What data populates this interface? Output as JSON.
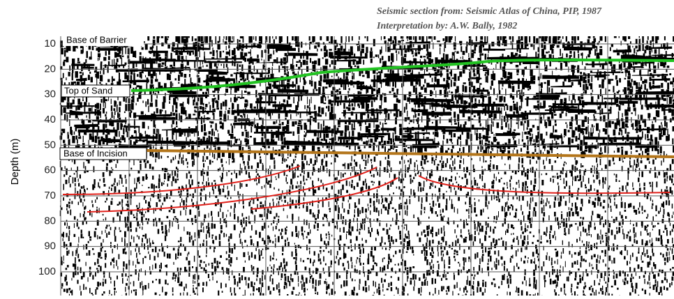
{
  "header": {
    "lines": [
      "Seismic section from: Seismic Atlas of China, PIP, 1987",
      "Interpretation by: A.W. Bally, 1982"
    ]
  },
  "axis": {
    "label": "Depth (m)",
    "ticks": [
      "10",
      "20",
      "30",
      "40",
      "50",
      "60",
      "70",
      "80",
      "90",
      "100"
    ]
  },
  "horizons": [
    "Base of Barrier",
    "Top of Sand",
    "Base of Incision"
  ]
}
